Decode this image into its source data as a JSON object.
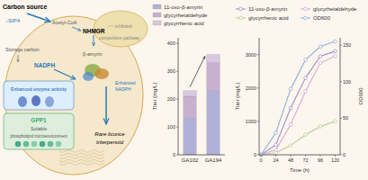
{
  "chart_data": [
    {
      "type": "diagram",
      "annotations": [
        "Carbon source",
        "↓SIP4",
        "Acetyl-CoA",
        "NHMGR",
        "inhibited",
        "competitive pathway",
        "Storage carbon",
        "NADPH",
        "β-amyrin",
        "Enhanced enzyme activity",
        "GPP1",
        "Suitable",
        "phospholipid microenvironment",
        "Rare licorice",
        "triterpenoid",
        "Enhanced",
        "NADPH"
      ]
    },
    {
      "type": "bar",
      "stacked": true,
      "categories": [
        "GA102",
        "GA194"
      ],
      "series": [
        {
          "name": "11-oxo-β-amyrin",
          "color": "#b0b0d8",
          "values": [
            130,
            230
          ]
        },
        {
          "name": "glycyrhetaldehyde",
          "color": "#c8b0d0",
          "values": [
            80,
            100
          ]
        },
        {
          "name": "glycyrrhenic acid",
          "color": "#d8c8e0",
          "values": [
            20,
            30
          ]
        }
      ],
      "y_label": "Titer (mg/L)",
      "ylim": [
        0,
        420
      ],
      "yticks": [
        0,
        100,
        200,
        300,
        400
      ],
      "legend": "top"
    },
    {
      "type": "line",
      "x": [
        0,
        24,
        48,
        72,
        96,
        120
      ],
      "xlim": [
        -3,
        128
      ],
      "xticks": [
        0,
        24,
        48,
        72,
        96,
        120
      ],
      "x_label": "Time (h)",
      "y_label": "Titer (mg/L)",
      "y2_label": "OD600",
      "ylim": [
        0,
        3500
      ],
      "yticks": [
        0,
        1000,
        2000,
        3000
      ],
      "y2lim": [
        0,
        160
      ],
      "y2ticks": [
        0,
        50,
        100,
        150
      ],
      "marker": "circle",
      "series": [
        {
          "name": "11-oxo-β-amyrin",
          "color": "#a090c8",
          "values": [
            0,
            300,
            1400,
            2300,
            2950,
            3100
          ]
        },
        {
          "name": "glycyrhetaldehyde",
          "color": "#d4a8d8",
          "values": [
            0,
            150,
            900,
            1900,
            2750,
            2950
          ]
        },
        {
          "name": "glycyrrhenic acid",
          "color": "#b8cc98",
          "values": [
            0,
            60,
            280,
            600,
            850,
            1000
          ]
        },
        {
          "name": "OD600",
          "color": "#8ab0d8",
          "axis": "y2",
          "values": [
            0,
            30,
            90,
            130,
            148,
            155
          ]
        }
      ],
      "legend": "top"
    }
  ]
}
